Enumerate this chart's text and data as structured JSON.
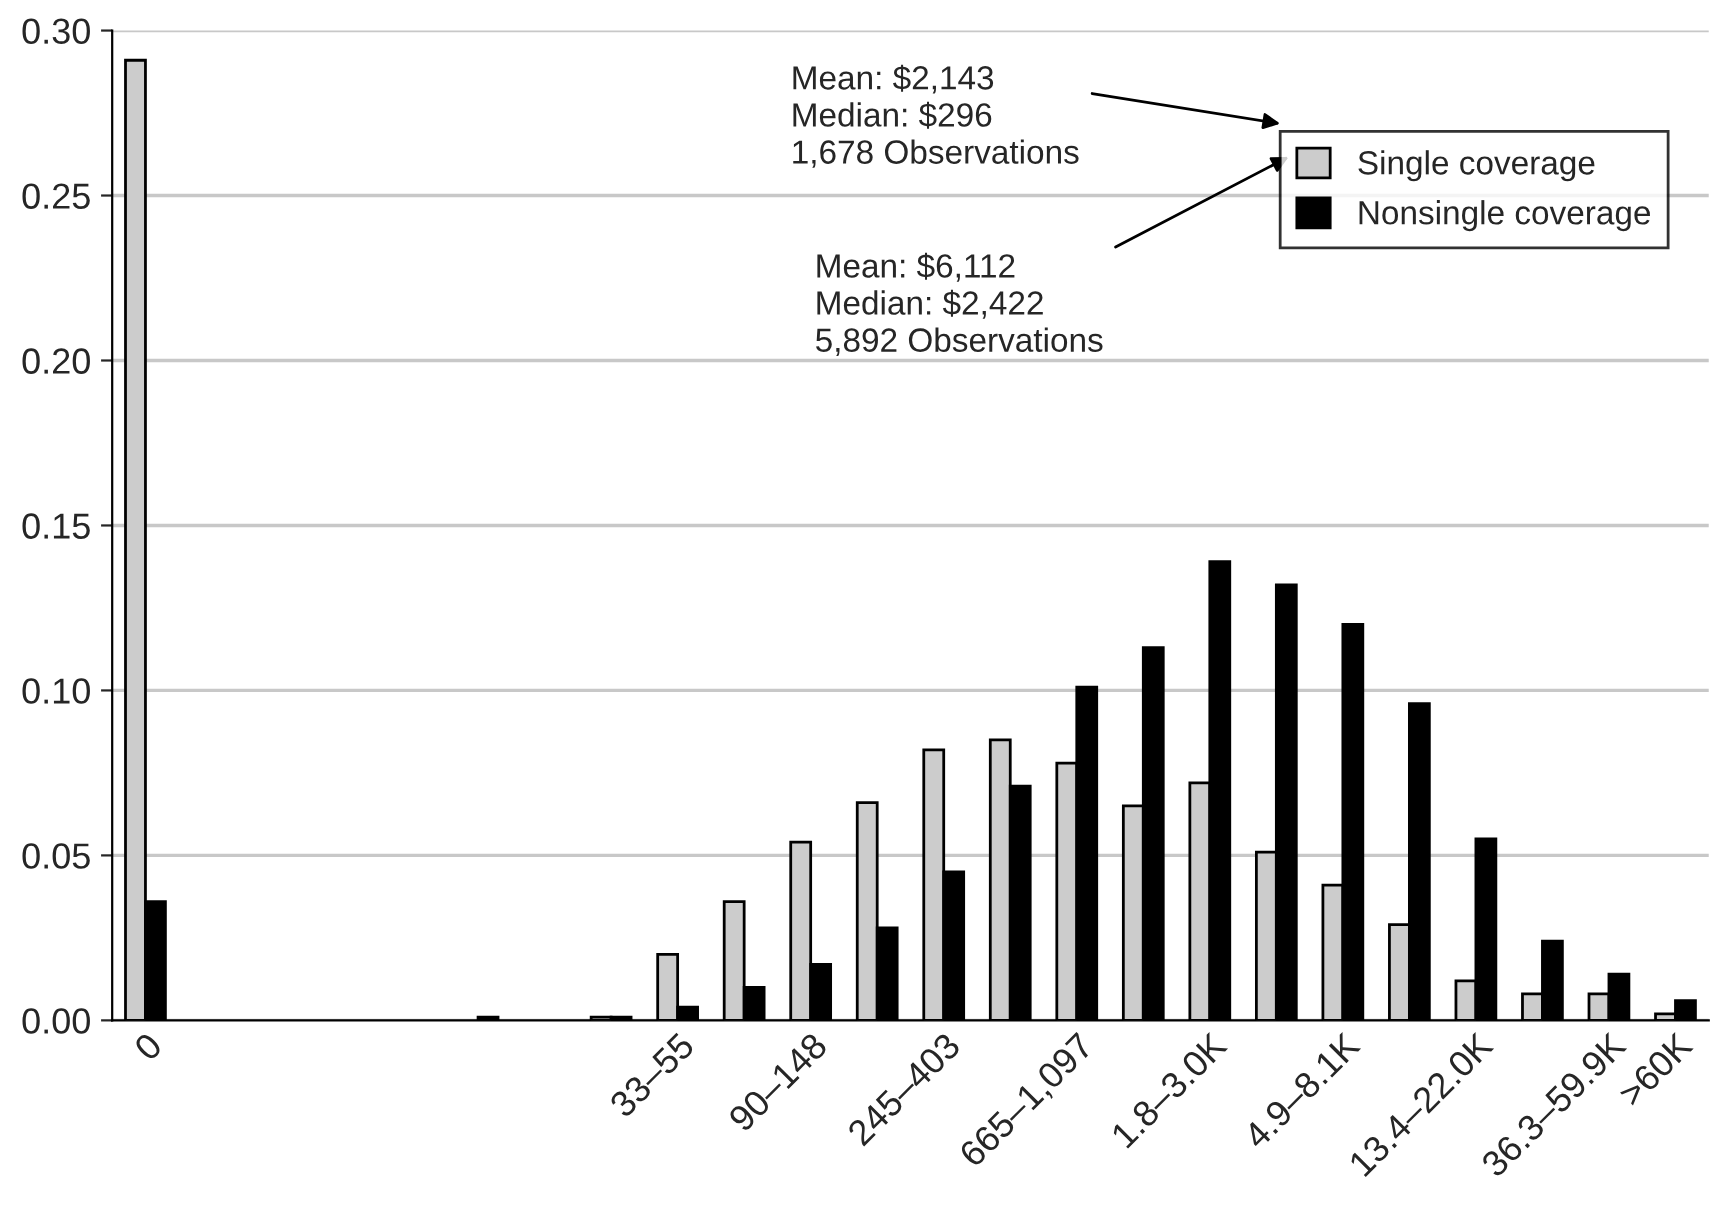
{
  "chart_data": {
    "type": "bar",
    "categories": [
      "0",
      null,
      null,
      null,
      null,
      null,
      null,
      null,
      "33–55",
      null,
      "90–148",
      null,
      "245–403",
      null,
      "665–1,097",
      null,
      "1.8–3.0K",
      null,
      "4.9–8.1K",
      null,
      "13.4–22.0K",
      null,
      "36.3–59.9K",
      ">60K"
    ],
    "series": [
      {
        "name": "Single coverage",
        "color": "#cccccc",
        "values": [
          0.291,
          null,
          null,
          null,
          null,
          null,
          null,
          0.001,
          0.02,
          0.036,
          0.054,
          0.066,
          0.082,
          0.085,
          0.078,
          0.065,
          0.072,
          0.051,
          0.041,
          0.029,
          0.012,
          0.008,
          0.008,
          0.002
        ]
      },
      {
        "name": "Nonsingle coverage",
        "color": "#000000",
        "values": [
          0.036,
          null,
          null,
          null,
          null,
          0.001,
          null,
          0.001,
          0.004,
          0.01,
          0.017,
          0.028,
          0.045,
          0.071,
          0.101,
          0.113,
          0.139,
          0.132,
          0.12,
          0.096,
          0.055,
          0.024,
          0.014,
          0.006
        ]
      }
    ],
    "ylim": [
      0,
      0.3
    ],
    "yticks": [
      {
        "value": 0,
        "label": "0.00"
      },
      {
        "value": 0.05,
        "label": "0.05"
      },
      {
        "value": 0.1,
        "label": "0.10"
      },
      {
        "value": 0.15,
        "label": "0.15"
      },
      {
        "value": 0.2,
        "label": "0.20"
      },
      {
        "value": 0.25,
        "label": "0.25"
      },
      {
        "value": 0.3,
        "label": "0.30"
      }
    ],
    "grid": "y",
    "legend": "top right",
    "annotations": [
      "Mean: $2,143\nMedian: $296\n1,678 Observations",
      "Mean: $6,112\nMedian: $2,422\n5,892 Observations"
    ]
  }
}
